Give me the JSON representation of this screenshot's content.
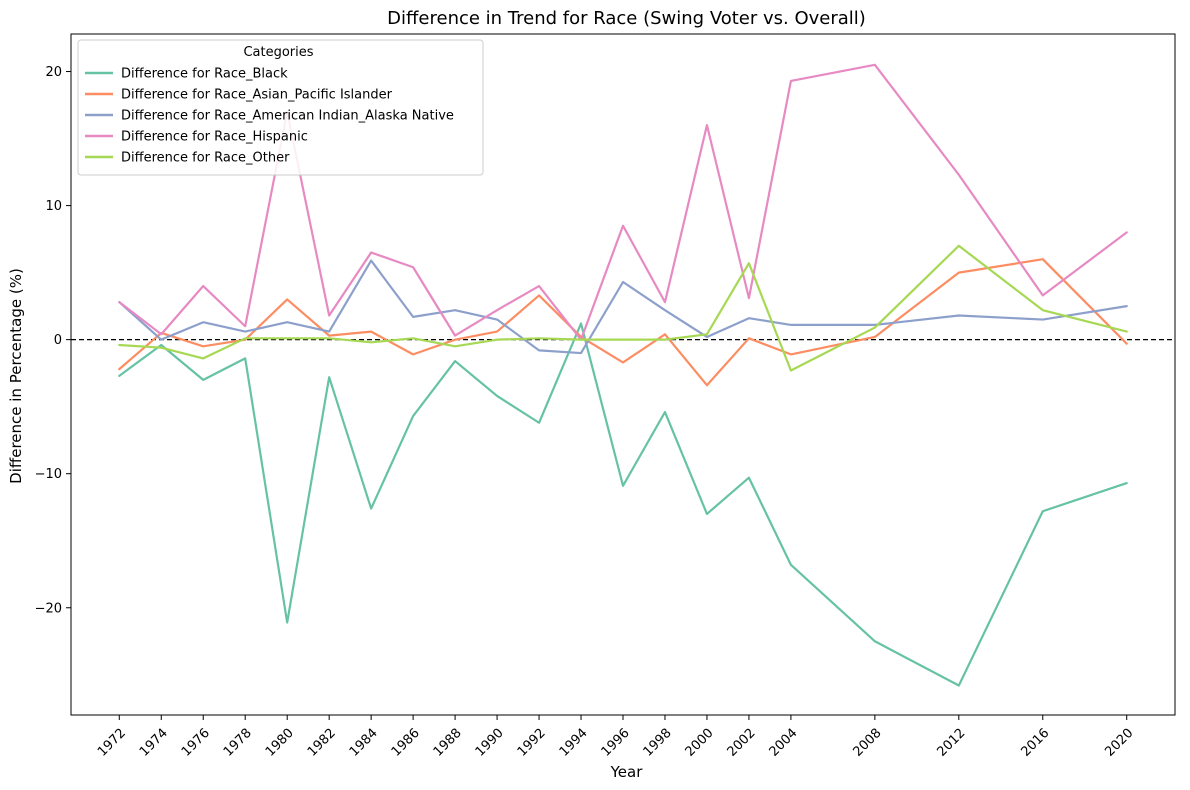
{
  "chart_data": {
    "type": "line",
    "title": "Difference in Trend for Race (Swing Voter vs. Overall)",
    "xlabel": "Year",
    "ylabel": "Difference in Percentage (%)",
    "xlim": [
      1969.7,
      2022.3
    ],
    "ylim": [
      -28.0,
      22.8
    ],
    "x": [
      1972,
      1974,
      1976,
      1978,
      1980,
      1982,
      1984,
      1986,
      1988,
      1990,
      1992,
      1994,
      1996,
      1998,
      2000,
      2002,
      2004,
      2008,
      2012,
      2016,
      2020
    ],
    "x_tick_labels": [
      "1972",
      "1974",
      "1976",
      "1978",
      "1980",
      "1982",
      "1984",
      "1986",
      "1988",
      "1990",
      "1992",
      "1994",
      "1996",
      "1998",
      "2000",
      "2002",
      "2004",
      "2008",
      "2012",
      "2016",
      "2020"
    ],
    "y_ticks": [
      -20,
      -10,
      0,
      10,
      20
    ],
    "y_tick_labels": [
      "−20",
      "−10",
      "0",
      "10",
      "20"
    ],
    "reference_line": {
      "y": 0,
      "style": "dashed",
      "color": "#000000"
    },
    "legend": {
      "title": "Categories",
      "position": "top-left"
    },
    "grid": false,
    "series": [
      {
        "name": "Difference for Race_Black",
        "color": "#66c2a5",
        "values": [
          -2.7,
          -0.4,
          -3.0,
          -1.4,
          -21.1,
          -2.8,
          -12.6,
          -5.7,
          -1.6,
          -4.2,
          -6.2,
          1.2,
          -10.9,
          -5.4,
          -13.0,
          -10.3,
          -16.8,
          -22.5,
          -25.8,
          -12.8,
          -10.7
        ]
      },
      {
        "name": "Difference for Race_Asian_Pacific Islander",
        "color": "#fc8d62",
        "values": [
          -2.2,
          0.5,
          -0.5,
          0.0,
          3.0,
          0.3,
          0.6,
          -1.1,
          0.0,
          0.6,
          3.3,
          0.2,
          -1.7,
          0.4,
          -3.4,
          0.1,
          -1.1,
          0.2,
          5.0,
          6.0,
          -0.3
        ]
      },
      {
        "name": "Difference for Race_American Indian_Alaska Native",
        "color": "#8da0cb",
        "values": [
          2.8,
          0.0,
          1.3,
          0.6,
          1.3,
          0.6,
          5.9,
          1.7,
          2.2,
          1.5,
          -0.8,
          -1.0,
          4.3,
          2.2,
          0.2,
          1.6,
          1.1,
          1.1,
          1.8,
          1.5,
          2.5
        ]
      },
      {
        "name": "Difference for Race_Hispanic",
        "color": "#e78ac3",
        "values": [
          2.8,
          0.4,
          4.0,
          1.0,
          17.0,
          1.8,
          6.5,
          5.4,
          0.3,
          2.2,
          4.0,
          0.0,
          8.5,
          2.8,
          16.0,
          3.1,
          19.3,
          20.5,
          12.3,
          3.3,
          8.0
        ]
      },
      {
        "name": "Difference for Race_Other",
        "color": "#a6d854",
        "values": [
          -0.4,
          -0.6,
          -1.4,
          0.1,
          0.1,
          0.1,
          -0.2,
          0.1,
          -0.5,
          0.0,
          0.1,
          0.0,
          0.0,
          0.0,
          0.4,
          5.7,
          -2.3,
          0.9,
          7.0,
          2.2,
          0.6
        ]
      }
    ]
  }
}
